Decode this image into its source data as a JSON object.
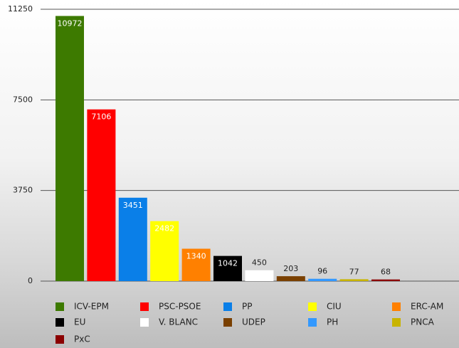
{
  "chart_data": {
    "type": "bar",
    "categories": [
      "ICV-EPM",
      "PSC-PSOE",
      "PP",
      "CIU",
      "ERC-AM",
      "EU",
      "V. BLANC",
      "UDEP",
      "PH",
      "PNCA",
      "PxC"
    ],
    "values": [
      10972,
      7106,
      3451,
      2482,
      1340,
      1042,
      450,
      203,
      96,
      77,
      68
    ],
    "colors": [
      "#3d7a00",
      "#ff0000",
      "#0a7fe8",
      "#ffff00",
      "#ff8000",
      "#000000",
      "#ffffff",
      "#7a4000",
      "#3399ff",
      "#c8b400",
      "#8b0000"
    ],
    "ylim": [
      0,
      11250
    ],
    "yticks": [
      0,
      3750,
      7500,
      11250
    ],
    "grid": true
  }
}
